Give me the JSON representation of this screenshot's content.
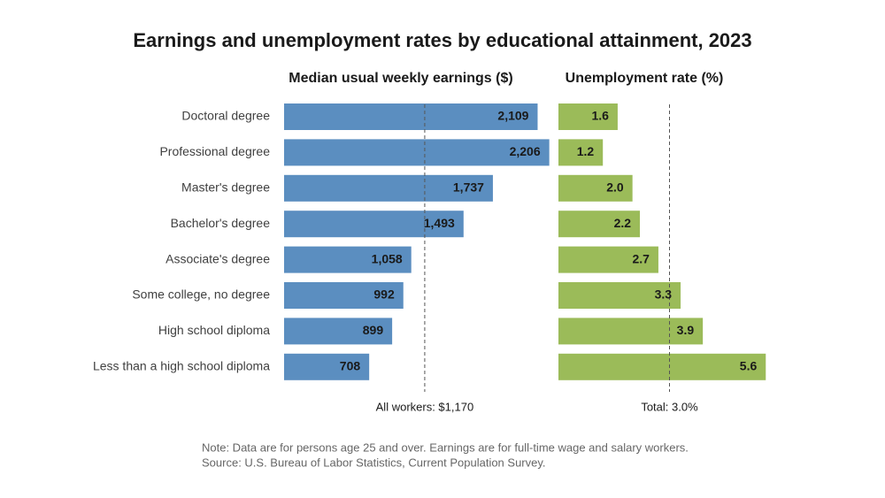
{
  "title": "Earnings and unemployment rates by educational attainment, 2023",
  "notes": [
    "Note: Data are for persons age 25 and over. Earnings are for full-time wage and salary workers.",
    "Source: U.S. Bureau of Labor Statistics, Current Population Survey."
  ],
  "chart_data": [
    {
      "type": "bar",
      "orientation": "horizontal",
      "subtitle": "Median usual weekly earnings ($)",
      "categories": [
        "Doctoral degree",
        "Professional degree",
        "Master's degree",
        "Bachelor's degree",
        "Associate's degree",
        "Some college, no degree",
        "High school diploma",
        "Less than a high school diploma"
      ],
      "values": [
        2109,
        2206,
        1737,
        1493,
        1058,
        992,
        899,
        708
      ],
      "value_labels": [
        "2,109",
        "2,206",
        "1,737",
        "1,493",
        "1,058",
        "992",
        "899",
        "708"
      ],
      "color": "#5b8ec0",
      "xlim": [
        0,
        2400
      ],
      "reference": {
        "value": 1170,
        "label": "All workers: $1,170"
      }
    },
    {
      "type": "bar",
      "orientation": "horizontal",
      "subtitle": "Unemployment rate (%)",
      "values": [
        1.6,
        1.2,
        2.0,
        2.2,
        2.7,
        3.3,
        3.9,
        5.6
      ],
      "value_labels": [
        "1.6",
        "1.2",
        "2.0",
        "2.2",
        "2.7",
        "3.3",
        "3.9",
        "5.6"
      ],
      "color": "#9bbb59",
      "xlim": [
        0,
        6
      ],
      "reference": {
        "value": 3.0,
        "label": "Total: 3.0%"
      }
    }
  ]
}
